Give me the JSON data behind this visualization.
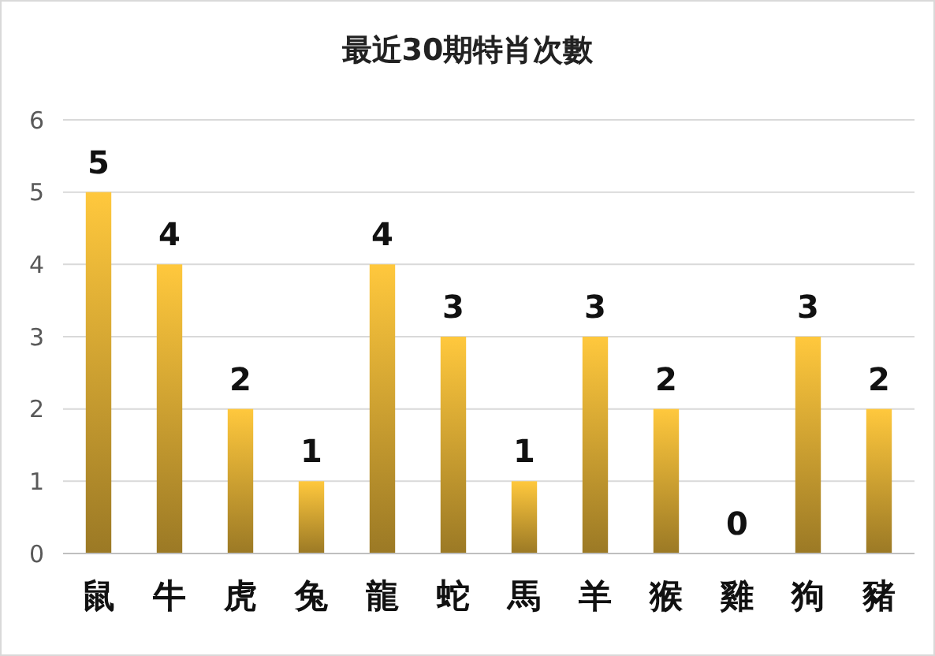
{
  "chart_data": {
    "type": "bar",
    "title": "最近30期特肖次數",
    "categories": [
      "鼠",
      "牛",
      "虎",
      "兔",
      "龍",
      "蛇",
      "馬",
      "羊",
      "猴",
      "雞",
      "狗",
      "豬"
    ],
    "values": [
      5,
      4,
      2,
      1,
      4,
      3,
      1,
      3,
      2,
      0,
      3,
      2
    ],
    "color": "#ffc83d",
    "ylim": [
      0,
      6
    ],
    "yticks": [
      0,
      1,
      2,
      3,
      4,
      5,
      6
    ],
    "grid": "y",
    "data_labels": true
  }
}
